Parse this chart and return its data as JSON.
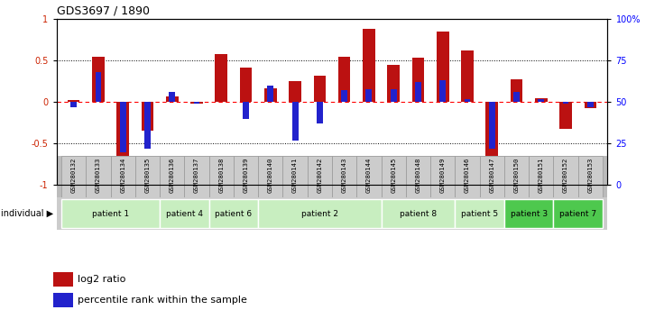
{
  "title": "GDS3697 / 1890",
  "samples": [
    "GSM280132",
    "GSM280133",
    "GSM280134",
    "GSM280135",
    "GSM280136",
    "GSM280137",
    "GSM280138",
    "GSM280139",
    "GSM280140",
    "GSM280141",
    "GSM280142",
    "GSM280143",
    "GSM280144",
    "GSM280145",
    "GSM280148",
    "GSM280149",
    "GSM280146",
    "GSM280147",
    "GSM280150",
    "GSM280151",
    "GSM280152",
    "GSM280153"
  ],
  "log2_ratio": [
    0.02,
    0.55,
    -0.7,
    -0.35,
    0.07,
    -0.02,
    0.58,
    0.42,
    0.17,
    0.25,
    0.32,
    0.55,
    0.88,
    0.45,
    0.53,
    0.85,
    0.62,
    -0.75,
    0.27,
    0.05,
    -0.32,
    -0.07
  ],
  "percentile": [
    47,
    68,
    20,
    22,
    56,
    49,
    50,
    40,
    60,
    27,
    37,
    57,
    58,
    58,
    62,
    63,
    52,
    22,
    56,
    52,
    49,
    47
  ],
  "patients": [
    {
      "label": "patient 1",
      "start": 0,
      "end": 4,
      "color": "#c8eec0"
    },
    {
      "label": "patient 4",
      "start": 4,
      "end": 6,
      "color": "#c8eec0"
    },
    {
      "label": "patient 6",
      "start": 6,
      "end": 8,
      "color": "#c8eec0"
    },
    {
      "label": "patient 2",
      "start": 8,
      "end": 13,
      "color": "#c8eec0"
    },
    {
      "label": "patient 8",
      "start": 13,
      "end": 16,
      "color": "#c8eec0"
    },
    {
      "label": "patient 5",
      "start": 16,
      "end": 18,
      "color": "#c8eec0"
    },
    {
      "label": "patient 3",
      "start": 18,
      "end": 20,
      "color": "#4ec84e"
    },
    {
      "label": "patient 7",
      "start": 20,
      "end": 22,
      "color": "#4ec84e"
    }
  ],
  "bar_color_red": "#bb1111",
  "bar_color_blue": "#2222cc",
  "ylim": [
    -1,
    1
  ],
  "yticks": [
    -1,
    -0.5,
    0,
    0.5,
    1
  ],
  "ytick_labels": [
    "-1",
    "-0.5",
    "0",
    "0.5",
    "1"
  ],
  "y2ticks": [
    0,
    25,
    50,
    75,
    100
  ],
  "y2tick_labels": [
    "0",
    "25",
    "50",
    "75",
    "100%"
  ],
  "red_bar_width": 0.5,
  "blue_bar_width": 0.25,
  "sample_box_color": "#cccccc",
  "sample_box_edge": "#999999"
}
